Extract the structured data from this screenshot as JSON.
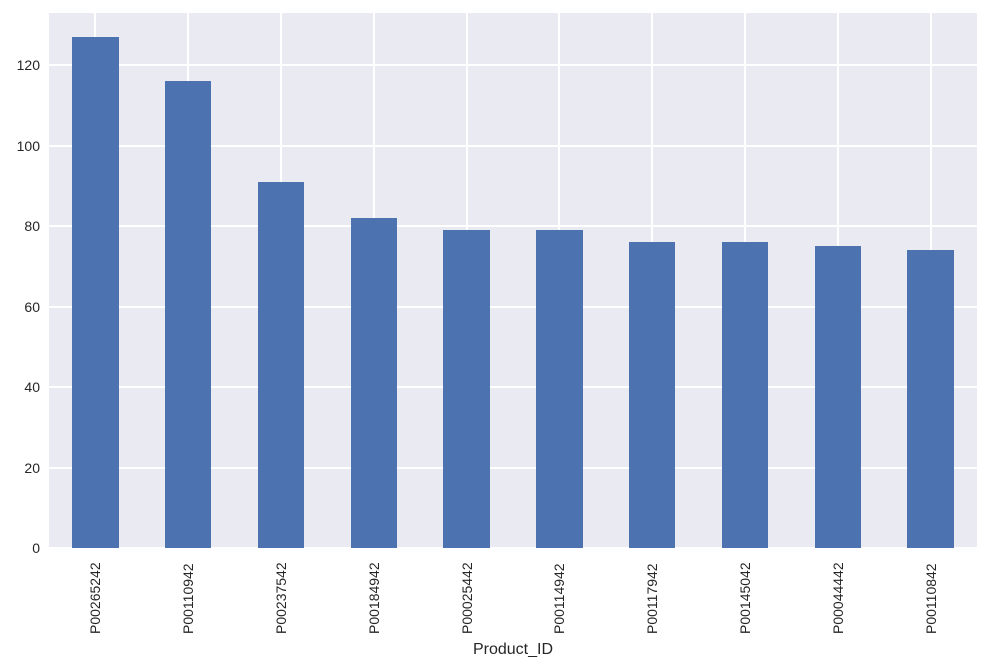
{
  "figure": {
    "background_color": "#ffffff",
    "axes_background_color": "#eaeaf2",
    "grid_color": "#ffffff",
    "bar_color": "#4c72b0",
    "text_color": "#262626"
  },
  "chart_data": {
    "type": "bar",
    "title": "",
    "xlabel": "Product_ID",
    "ylabel": "",
    "categories": [
      "P00265242",
      "P00110942",
      "P00237542",
      "P00184942",
      "P00025442",
      "P00114942",
      "P00117942",
      "P00145042",
      "P00044442",
      "P00110842"
    ],
    "values": [
      127,
      116,
      91,
      82,
      79,
      79,
      76,
      76,
      75,
      74
    ],
    "ylim": [
      0,
      133
    ],
    "yticks": [
      0,
      20,
      40,
      60,
      80,
      100,
      120
    ],
    "grid": true,
    "legend": false,
    "bar_width_fraction": 0.5,
    "xtick_rotation_degrees": 90
  }
}
